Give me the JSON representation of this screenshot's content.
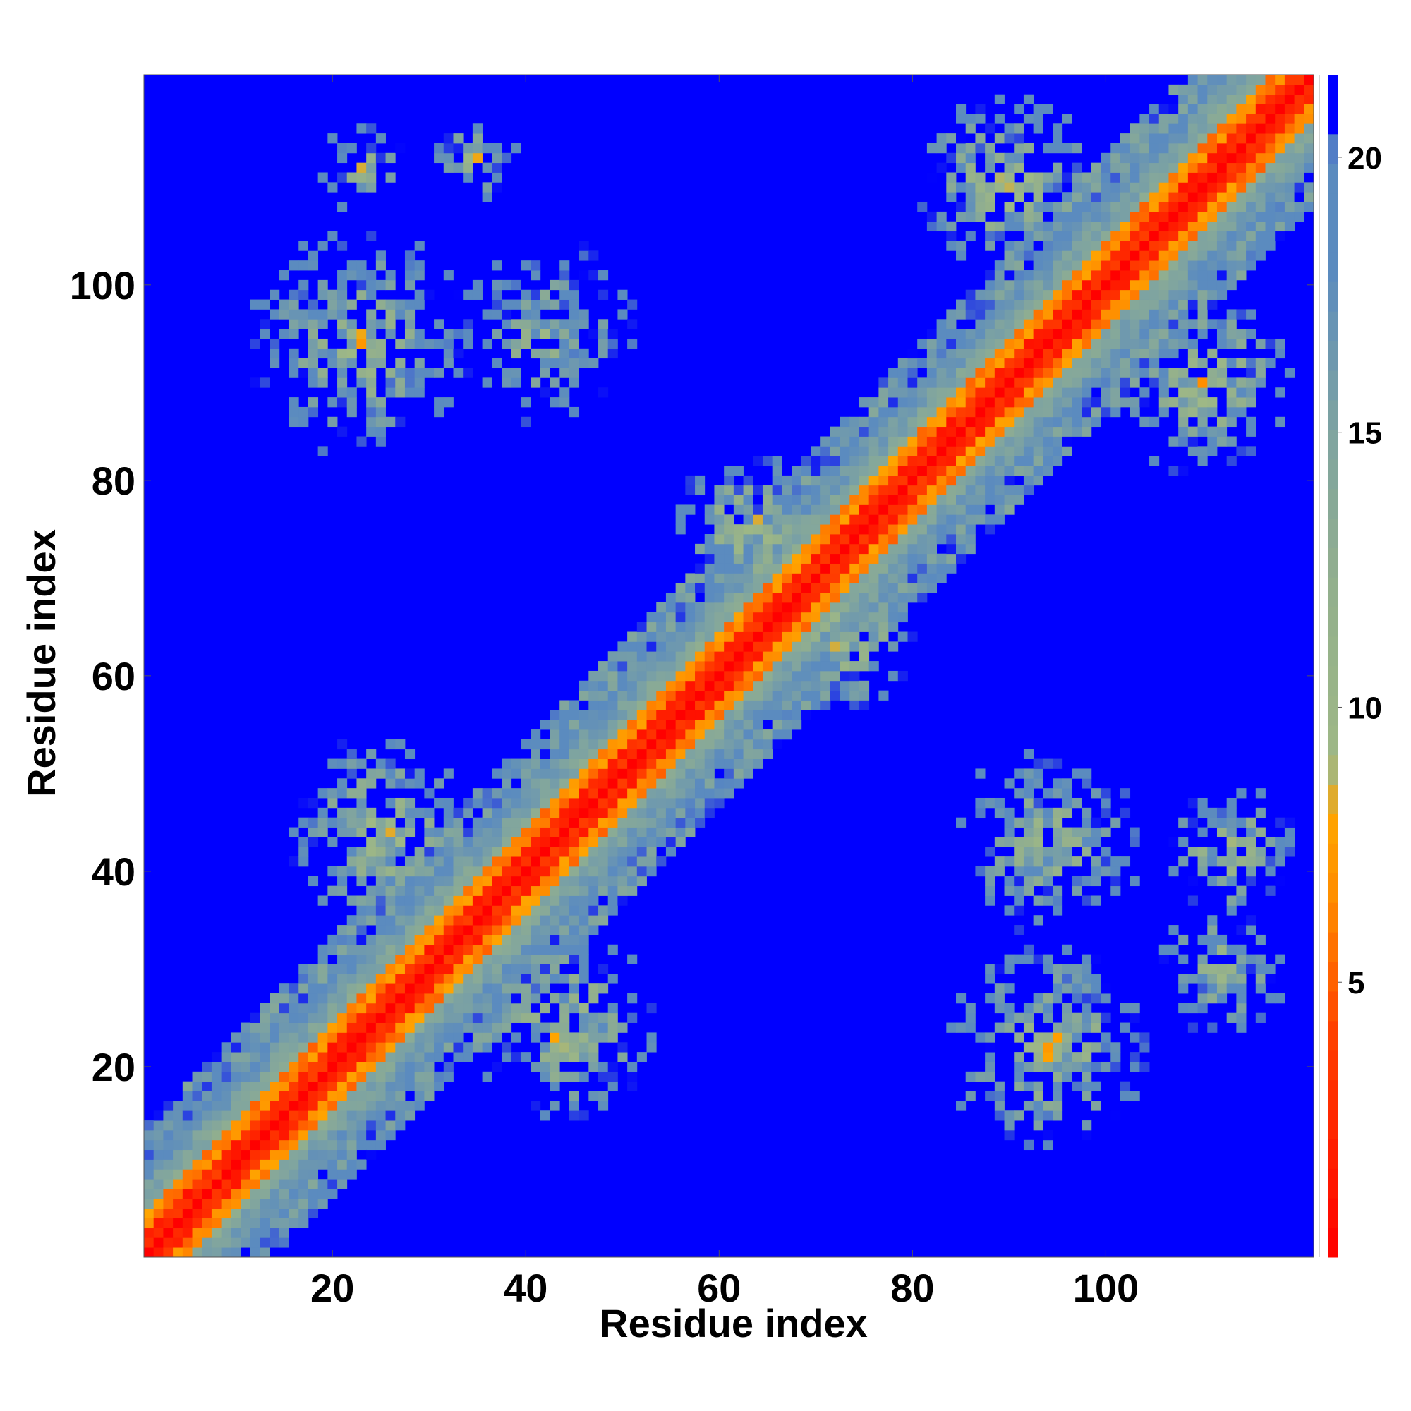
{
  "chart_data": {
    "type": "heatmap",
    "title": "",
    "xlabel": "Residue index",
    "ylabel": "Residue index",
    "x_range": [
      1,
      121
    ],
    "y_range": [
      1,
      121
    ],
    "x_ticks": [
      20,
      40,
      60,
      80,
      100
    ],
    "y_ticks": [
      20,
      40,
      60,
      80,
      100
    ],
    "colorbar": {
      "range": [
        0,
        21.5
      ],
      "ticks": [
        5,
        10,
        15,
        20
      ],
      "stops": [
        {
          "value": 0,
          "color": "#ff0000"
        },
        {
          "value": 4,
          "color": "#ff4000"
        },
        {
          "value": 6.5,
          "color": "#ff8c00"
        },
        {
          "value": 8,
          "color": "#ffa500"
        },
        {
          "value": 9,
          "color": "#9eb886"
        },
        {
          "value": 12,
          "color": "#94b08c"
        },
        {
          "value": 15,
          "color": "#7fa4a0"
        },
        {
          "value": 18,
          "color": "#5b8bbf"
        },
        {
          "value": 20,
          "color": "#5b8bbf"
        },
        {
          "value": 21.5,
          "color": "#0000ff"
        }
      ],
      "background_color": "#0000ff"
    },
    "description_values": {
      "diagonal_distance": 0,
      "cutoff": 21.5
    },
    "clusters": [
      {
        "center": [
          23,
          94
        ],
        "radius": 12,
        "min": 7
      },
      {
        "center": [
          42,
          95
        ],
        "radius": 10,
        "min": 8
      },
      {
        "center": [
          25,
          44
        ],
        "radius": 10,
        "min": 6
      },
      {
        "center": [
          44,
          24
        ],
        "radius": 10,
        "min": 6
      },
      {
        "center": [
          94,
          43
        ],
        "radius": 10,
        "min": 7
      },
      {
        "center": [
          94,
          22
        ],
        "radius": 11,
        "min": 6
      },
      {
        "center": [
          112,
          30
        ],
        "radius": 7,
        "min": 7
      },
      {
        "center": [
          113,
          42
        ],
        "radius": 7,
        "min": 6
      },
      {
        "center": [
          63,
          75
        ],
        "radius": 8,
        "min": 6
      },
      {
        "center": [
          73,
          64
        ],
        "radius": 8,
        "min": 6
      },
      {
        "center": [
          90,
          110
        ],
        "radius": 10,
        "min": 6
      },
      {
        "center": [
          110,
          90
        ],
        "radius": 10,
        "min": 6
      },
      {
        "center": [
          35,
          113
        ],
        "radius": 5,
        "min": 7
      },
      {
        "center": [
          23,
          112
        ],
        "radius": 5,
        "min": 8
      }
    ]
  }
}
